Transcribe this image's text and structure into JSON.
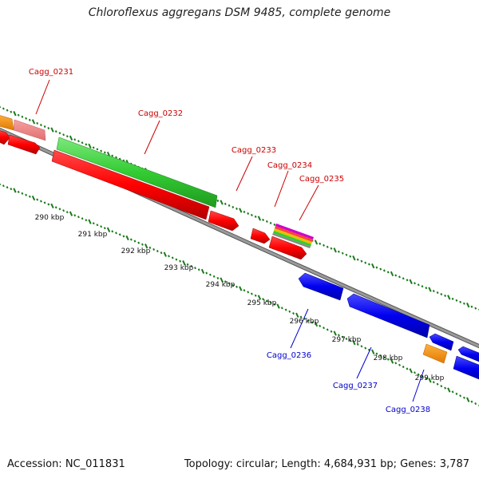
{
  "title": "Chloroflexus aggregans DSM 9485, complete genome",
  "footer": {
    "accession": "Accession: NC_011831",
    "summary": "Topology: circular; Length: 4,684,931 bp; Genes: 3,787"
  },
  "colors": {
    "forward_label": "#cc0000",
    "reverse_label": "#0000cc",
    "backbone": "#888888",
    "tick": "#1a7a1a"
  },
  "scale_labels": [
    {
      "text": "290 kbp",
      "kbp": 290
    },
    {
      "text": "291 kbp",
      "kbp": 291
    },
    {
      "text": "292 kbp",
      "kbp": 292
    },
    {
      "text": "293 kbp",
      "kbp": 293
    },
    {
      "text": "294 kbp",
      "kbp": 294
    },
    {
      "text": "295 kbp",
      "kbp": 295
    },
    {
      "text": "296 kbp",
      "kbp": 296
    },
    {
      "text": "297 kbp",
      "kbp": 297
    },
    {
      "text": "298 kbp",
      "kbp": 298
    },
    {
      "text": "299 kbp",
      "kbp": 299
    }
  ],
  "gene_labels": [
    {
      "name": "Cagg_0231",
      "strand": "forward"
    },
    {
      "name": "Cagg_0232",
      "strand": "forward"
    },
    {
      "name": "Cagg_0233",
      "strand": "forward"
    },
    {
      "name": "Cagg_0234",
      "strand": "forward"
    },
    {
      "name": "Cagg_0235",
      "strand": "forward"
    },
    {
      "name": "Cagg_0236",
      "strand": "reverse"
    },
    {
      "name": "Cagg_0237",
      "strand": "reverse"
    },
    {
      "name": "Cagg_0238",
      "strand": "reverse"
    }
  ]
}
